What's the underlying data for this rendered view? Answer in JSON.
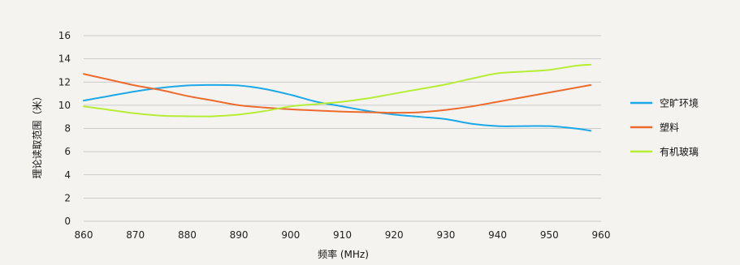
{
  "chart_data": {
    "type": "line",
    "xlabel": "频率 (MHz)",
    "ylabel": "理论读取范围（米）",
    "xlim": [
      860,
      960
    ],
    "ylim": [
      0,
      16
    ],
    "x_ticks": [
      860,
      870,
      880,
      890,
      900,
      910,
      920,
      930,
      940,
      950,
      960
    ],
    "y_ticks": [
      0,
      2,
      4,
      6,
      8,
      10,
      12,
      14,
      16
    ],
    "grid": "horizontal",
    "legend_position": "right",
    "series": [
      {
        "name": "空旷环境",
        "color": "#1ba8e8",
        "x": [
          860,
          865,
          870,
          875,
          880,
          885,
          890,
          895,
          900,
          905,
          910,
          915,
          920,
          925,
          930,
          935,
          940,
          945,
          950,
          955,
          958
        ],
        "y": [
          10.4,
          10.8,
          11.2,
          11.5,
          11.7,
          11.75,
          11.7,
          11.4,
          10.9,
          10.3,
          9.9,
          9.5,
          9.2,
          9.0,
          8.8,
          8.4,
          8.2,
          8.2,
          8.2,
          8.0,
          7.8
        ]
      },
      {
        "name": "塑料",
        "color": "#ee6a2c",
        "x": [
          860,
          865,
          870,
          875,
          880,
          885,
          890,
          895,
          900,
          905,
          910,
          915,
          920,
          925,
          930,
          935,
          940,
          945,
          950,
          955,
          958
        ],
        "y": [
          12.7,
          12.2,
          11.7,
          11.3,
          10.8,
          10.4,
          10.0,
          9.8,
          9.65,
          9.55,
          9.45,
          9.4,
          9.35,
          9.4,
          9.6,
          9.9,
          10.3,
          10.7,
          11.1,
          11.5,
          11.75
        ]
      },
      {
        "name": "有机玻璃",
        "color": "#b5ee34",
        "x": [
          860,
          865,
          870,
          875,
          880,
          885,
          890,
          895,
          900,
          905,
          910,
          915,
          920,
          925,
          930,
          935,
          940,
          945,
          950,
          955,
          958
        ],
        "y": [
          9.9,
          9.6,
          9.3,
          9.1,
          9.05,
          9.05,
          9.2,
          9.5,
          9.9,
          10.1,
          10.3,
          10.6,
          11.0,
          11.4,
          11.8,
          12.3,
          12.75,
          12.9,
          13.05,
          13.4,
          13.5
        ]
      }
    ]
  }
}
